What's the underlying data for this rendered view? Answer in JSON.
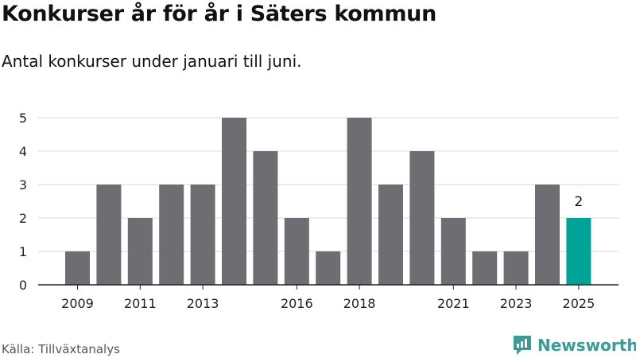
{
  "header": {
    "title": "Konkurser år för år i Säters kommun",
    "subtitle": "Antal konkurser under januari till juni."
  },
  "footer": {
    "source": "Källa: Tillväxtanalys",
    "brand": "Newsworthy"
  },
  "colors": {
    "bar": "#6e6d72",
    "highlight": "#00a398",
    "grid": "#d9d9d9",
    "brand": "#3a9d93"
  },
  "chart_data": {
    "type": "bar",
    "categories": [
      "2009",
      "2010",
      "2011",
      "2012",
      "2013",
      "2014",
      "2015",
      "2016",
      "2017",
      "2018",
      "2019",
      "2020",
      "2021",
      "2022",
      "2023",
      "2024",
      "2025"
    ],
    "values": [
      1,
      3,
      2,
      3,
      3,
      5,
      4,
      2,
      1,
      5,
      3,
      4,
      2,
      1,
      1,
      3,
      2
    ],
    "x_tick_labels": [
      "2009",
      "2011",
      "2013",
      "2016",
      "2018",
      "2021",
      "2023",
      "2025"
    ],
    "y_ticks": [
      0,
      1,
      2,
      3,
      4,
      5
    ],
    "ylim": [
      0,
      5
    ],
    "highlight_category": "2025",
    "annotations": [
      {
        "category": "2025",
        "text": "2"
      }
    ],
    "grid": true
  }
}
